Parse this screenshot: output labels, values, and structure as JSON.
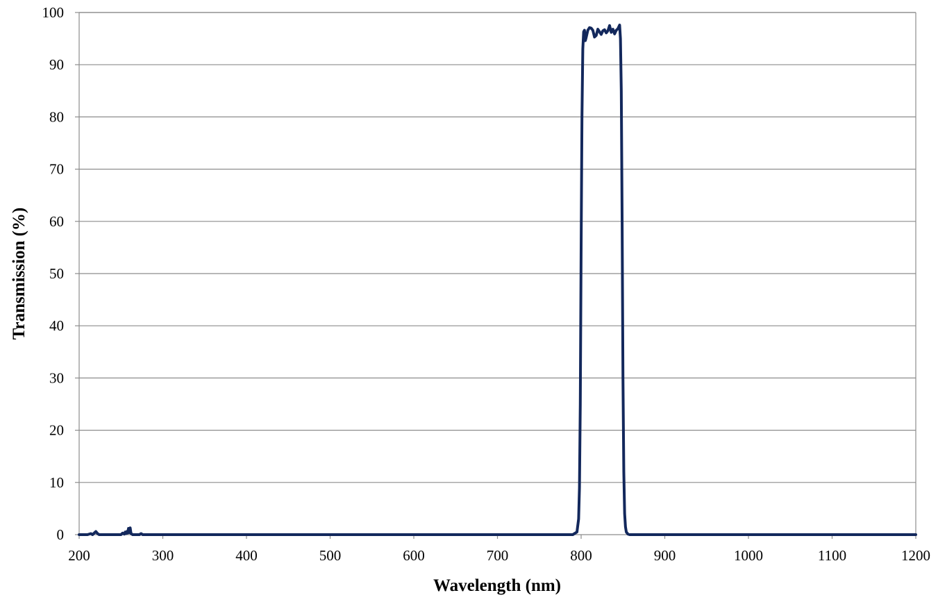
{
  "chart_data": {
    "type": "line",
    "title": "",
    "xlabel": "Wavelength (nm)",
    "ylabel": "Transmission (%)",
    "xlim": [
      200,
      1200
    ],
    "ylim": [
      0,
      100
    ],
    "x_ticks": [
      200,
      300,
      400,
      500,
      600,
      700,
      800,
      900,
      1000,
      1100,
      1200
    ],
    "y_ticks": [
      0,
      10,
      20,
      30,
      40,
      50,
      60,
      70,
      80,
      90,
      100
    ],
    "x_tick_labels": [
      "200",
      "300",
      "400",
      "500",
      "600",
      "700",
      "800",
      "900",
      "1000",
      "1100",
      "1200"
    ],
    "y_tick_labels": [
      "0",
      "10",
      "20",
      "30",
      "40",
      "50",
      "60",
      "70",
      "80",
      "90",
      "100"
    ],
    "grid": "horizontal",
    "legend": "none",
    "line_color": "#13285c",
    "grid_color": "#8c8c8c",
    "series": [
      {
        "x": [
          200,
          210,
          214,
          216,
          218,
          220,
          222,
          224,
          228,
          240,
          250,
          252,
          254,
          255,
          256,
          257,
          258,
          259,
          260,
          261,
          262,
          264,
          268,
          272,
          274,
          276,
          280,
          300,
          400,
          500,
          600,
          700,
          780,
          790,
          795,
          797,
          798,
          799,
          800,
          801,
          802,
          803,
          804,
          805,
          806,
          808,
          810,
          812,
          814,
          816,
          818,
          820,
          822,
          824,
          826,
          828,
          830,
          832,
          834,
          836,
          838,
          840,
          842,
          844,
          846,
          847,
          848,
          849,
          850,
          851,
          852,
          853,
          854,
          856,
          858,
          860,
          870,
          900,
          1000,
          1100,
          1200
        ],
        "y": [
          0,
          0,
          0.2,
          0,
          0.3,
          0.6,
          0.2,
          0,
          0,
          0,
          0,
          0.3,
          0.1,
          0.5,
          0.2,
          0.6,
          0.3,
          1.2,
          0.4,
          1.3,
          0.2,
          0,
          0,
          0,
          0.2,
          0,
          0,
          0,
          0,
          0,
          0,
          0,
          0,
          0,
          0.5,
          3,
          9,
          25,
          55,
          80,
          93,
          96.3,
          96.6,
          94.6,
          95.2,
          96.6,
          97.1,
          97,
          96.6,
          95.3,
          95.6,
          96.8,
          96.3,
          95.8,
          96.5,
          96.7,
          96.1,
          96.5,
          97.5,
          96.2,
          96.8,
          95.9,
          96.6,
          96.9,
          97.6,
          95,
          85,
          60,
          30,
          12,
          4,
          1.5,
          0.5,
          0.1,
          0,
          0,
          0,
          0,
          0,
          0,
          0
        ]
      }
    ]
  }
}
